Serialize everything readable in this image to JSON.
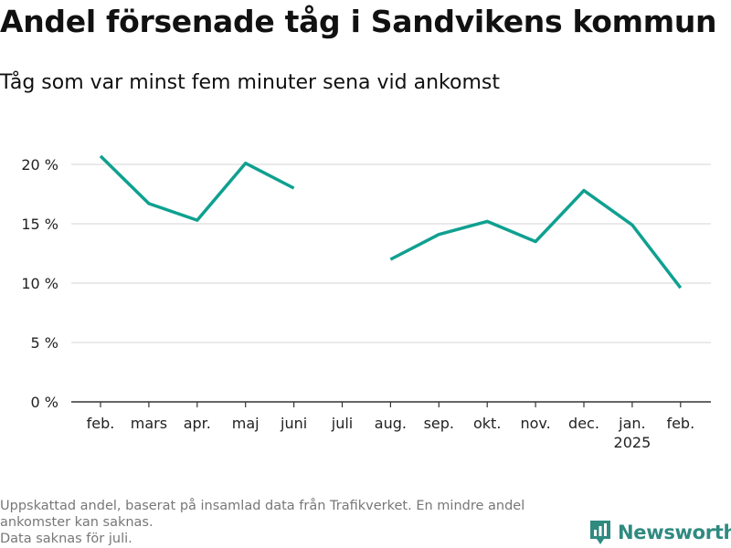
{
  "title": "Andel försenade tåg i Sandvikens kommun",
  "subtitle": "Tåg som var minst fem minuter sena vid ankomst",
  "footnotes": [
    "Uppskattad andel, baserat på insamlad data från Trafikverket. En mindre andel",
    "ankomster kan saknas.",
    "Data saknas för juli."
  ],
  "brand": {
    "name": "Newsworthy",
    "icon": "newsworthy-logo-icon",
    "color": "#2f8a80"
  },
  "chart_data": {
    "type": "line",
    "categories": [
      "feb.",
      "mars",
      "apr.",
      "maj",
      "juni",
      "juli",
      "aug.",
      "sep.",
      "okt.",
      "nov.",
      "dec.",
      "jan.",
      "feb."
    ],
    "category_sublabels": [
      "",
      "",
      "",
      "",
      "",
      "",
      "",
      "",
      "",
      "",
      "",
      "2025",
      ""
    ],
    "series": [
      {
        "values": [
          20.7,
          16.7,
          15.3,
          20.1,
          18.0,
          null,
          12.0,
          14.1,
          15.2,
          13.5,
          17.8,
          14.9,
          9.6
        ],
        "color": "#0fa090"
      }
    ],
    "ylim": [
      0,
      20
    ],
    "yticks": [
      0,
      5,
      10,
      15,
      20
    ],
    "ytick_labels": [
      "0 %",
      "5 %",
      "10 %",
      "15 %",
      "20 %"
    ],
    "grid": true,
    "xlabel": "",
    "ylabel": ""
  }
}
